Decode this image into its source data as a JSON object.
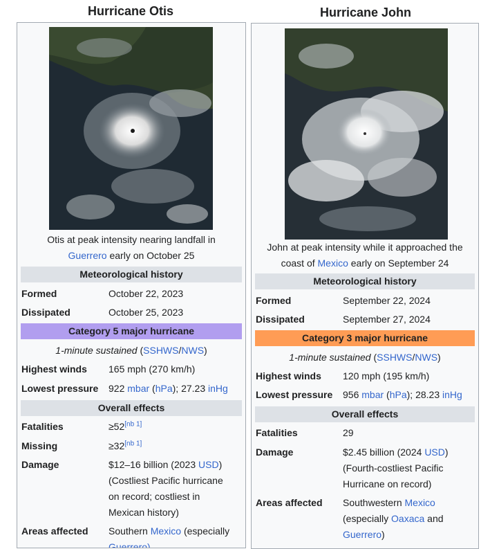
{
  "otis": {
    "title": "Hurricane Otis",
    "caption_line1": "Otis at peak intensity nearing landfall in",
    "caption_link": "Guerrero",
    "caption_tail": " early on October 25",
    "met_header": "Meteorological history",
    "formed_label": "Formed",
    "formed_value": "October 22, 2023",
    "dissipated_label": "Dissipated",
    "dissipated_value": "October 25, 2023",
    "category": "Category 5 major hurricane",
    "category_color": "#b19eef",
    "sustained_italic": "1-minute sustained",
    "sustained_open": " (",
    "sshws": "SSHWS",
    "slash": "/",
    "nws": "NWS",
    "close": ")",
    "winds_label": "Highest winds",
    "winds_value": "165 mph (270 km/h)",
    "pressure_label": "Lowest pressure",
    "pressure_num": "922 ",
    "mbar": "mbar",
    "hpa_open": " (",
    "hpa": "hPa",
    "pressure_mid": "); 27.23 ",
    "inhg": "inHg",
    "effects_header": "Overall effects",
    "fatalities_label": "Fatalities",
    "fatalities_value": "≥52",
    "fatalities_note": "[nb 1]",
    "missing_label": "Missing",
    "missing_value": "≥32",
    "missing_note": "[nb 1]",
    "damage_label": "Damage",
    "damage_line1a": "$12–16 billion (2023 ",
    "damage_usd": "USD",
    "damage_line1b": ")",
    "damage_line2": "(Costliest Pacific hurricane",
    "damage_line3": "on record; costliest in",
    "damage_line4": "Mexican history)",
    "areas_label": "Areas affected",
    "areas_a": "Southern ",
    "areas_link": "Mexico",
    "areas_b": " (especially",
    "areas_line2": "Guerrero)"
  },
  "john": {
    "title": "Hurricane John",
    "caption_line1": "John at peak intensity while it approached the",
    "caption_pre": "coast of ",
    "caption_link": "Mexico",
    "caption_tail": " early on September 24",
    "met_header": "Meteorological history",
    "formed_label": "Formed",
    "formed_value": "September 22, 2024",
    "dissipated_label": "Dissipated",
    "dissipated_value": "September 27, 2024",
    "category": "Category 3 major hurricane",
    "category_color": "#ff9c55",
    "sustained_italic": "1-minute sustained",
    "sustained_open": " (",
    "sshws": "SSHWS",
    "slash": "/",
    "nws": "NWS",
    "close": ")",
    "winds_label": "Highest winds",
    "winds_value": "120 mph (195 km/h)",
    "pressure_label": "Lowest pressure",
    "pressure_num": "956 ",
    "mbar": "mbar",
    "hpa_open": " (",
    "hpa": "hPa",
    "pressure_mid": "); 28.23 ",
    "inhg": "inHg",
    "effects_header": "Overall effects",
    "fatalities_label": "Fatalities",
    "fatalities_value": "29",
    "damage_label": "Damage",
    "damage_line1a": "$2.45 billion (2024 ",
    "damage_usd": "USD",
    "damage_line1b": ")",
    "damage_line2": "(Fourth-costliest Pacific",
    "damage_line3": "Hurricane on record)",
    "areas_label": "Areas affected",
    "areas_a": "Southwestern ",
    "areas_link": "Mexico",
    "areas_line2a": "(especially ",
    "areas_oaxaca": "Oaxaca",
    "areas_line2b": " and",
    "areas_guerrero": "Guerrero",
    "areas_line3b": ")"
  }
}
